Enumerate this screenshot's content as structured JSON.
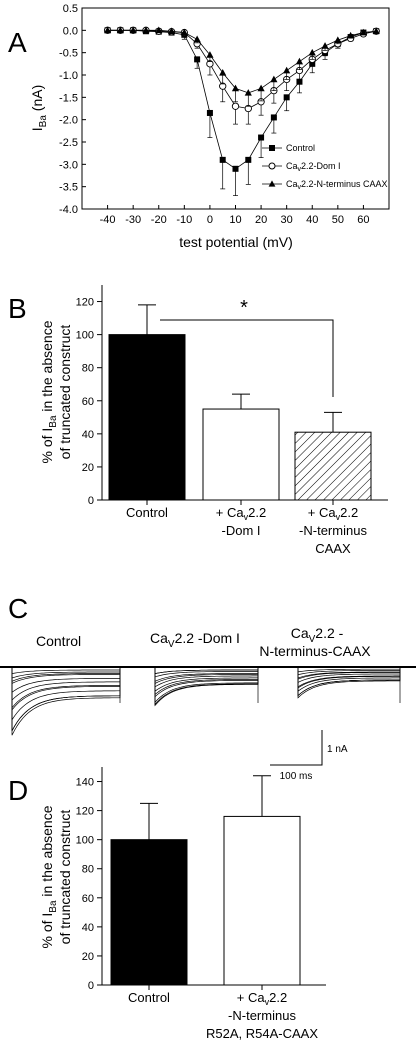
{
  "panels": {
    "A": {
      "letter": "A",
      "ylabel_main": "I",
      "ylabel_sub": "Ba",
      "ylabel_unit": " (nA)",
      "xlabel": "test potential (mV)",
      "legend": [
        {
          "prefix": "",
          "sub": "",
          "suffix": "Control",
          "marker": "square"
        },
        {
          "prefix": "Ca",
          "sub": "v",
          "suffix": "2.2-Dom I",
          "marker": "circle"
        },
        {
          "prefix": "Ca",
          "sub": "v",
          "suffix": "2.2-N-terminus CAAX",
          "marker": "triangle"
        }
      ]
    },
    "B": {
      "letter": "B",
      "ylabel_line1": "% of I",
      "ylabel_sub": "Ba",
      "ylabel_line1_end": " in the absence",
      "ylabel_line2": "of truncated construct",
      "significance": "*",
      "categories": [
        {
          "lines": [
            "Control"
          ]
        },
        {
          "lines": [
            "+ Ca",
            "-Dom I"
          ],
          "sub": "v",
          "after": "2.2"
        },
        {
          "lines": [
            "+ Ca",
            "-N-terminus",
            "CAAX"
          ],
          "sub": "v",
          "after": "2.2"
        }
      ]
    },
    "C": {
      "letter": "C",
      "labels": [
        {
          "main": "Control"
        },
        {
          "main": "Ca",
          "sub": "V",
          "after": "2.2 -Dom I"
        },
        {
          "main": "Ca",
          "sub": "V",
          "after": "2.2 -",
          "line2": "N-terminus-CAAX"
        }
      ],
      "scale_current": "1 nA",
      "scale_time": "100 ms"
    },
    "D": {
      "letter": "D",
      "ylabel_line1": "% of I",
      "ylabel_sub": "Ba",
      "ylabel_line1_end": " in the absence",
      "ylabel_line2": "of truncated construct",
      "categories": [
        {
          "lines": [
            "Control"
          ]
        },
        {
          "lines": [
            "+ Ca",
            "-N-terminus",
            "R52A, R54A-CAAX"
          ],
          "sub": "v",
          "after": "2.2"
        }
      ]
    }
  },
  "chart_data": [
    {
      "type": "line",
      "panel": "A",
      "xlabel": "test potential (mV)",
      "ylabel": "IBa (nA)",
      "xlim": [
        -50,
        70
      ],
      "ylim": [
        -4.0,
        0.5
      ],
      "xticks": [
        -40,
        -30,
        -20,
        -10,
        0,
        10,
        20,
        30,
        40,
        50,
        60,
        70
      ],
      "yticks": [
        0.5,
        0.0,
        -0.5,
        -1.0,
        -1.5,
        -2.0,
        -2.5,
        -3.0,
        -3.5,
        -4.0
      ],
      "x": [
        -40,
        -35,
        -30,
        -25,
        -20,
        -15,
        -10,
        -5,
        0,
        5,
        10,
        15,
        20,
        25,
        30,
        35,
        40,
        45,
        50,
        55,
        60,
        65
      ],
      "series": [
        {
          "name": "Control",
          "marker": "square",
          "values": [
            0.0,
            0.0,
            0.0,
            -0.02,
            -0.03,
            -0.05,
            -0.1,
            -0.65,
            -1.85,
            -2.9,
            -3.1,
            -2.9,
            -2.4,
            -1.95,
            -1.5,
            -1.15,
            -0.75,
            -0.5,
            -0.3,
            -0.15,
            -0.05,
            -0.02
          ],
          "errors": [
            0.0,
            0.0,
            0.0,
            0.02,
            0.03,
            0.05,
            0.1,
            0.2,
            0.55,
            0.65,
            0.6,
            0.55,
            0.45,
            0.35,
            0.3,
            0.25,
            0.2,
            0.15,
            0.1,
            0.08,
            0.05,
            0.02
          ]
        },
        {
          "name": "Cav2.2-Dom I",
          "marker": "circle",
          "values": [
            0.0,
            0.0,
            0.0,
            0.0,
            -0.02,
            -0.03,
            -0.05,
            -0.3,
            -0.75,
            -1.25,
            -1.7,
            -1.75,
            -1.6,
            -1.35,
            -1.1,
            -0.9,
            -0.65,
            -0.45,
            -0.3,
            -0.18,
            -0.08,
            -0.02
          ],
          "errors": [
            0.0,
            0.0,
            0.0,
            0.0,
            0.02,
            0.03,
            0.05,
            0.1,
            0.25,
            0.35,
            0.4,
            0.35,
            0.3,
            0.28,
            0.25,
            0.2,
            0.15,
            0.12,
            0.1,
            0.06,
            0.04,
            0.02
          ]
        },
        {
          "name": "Cav2.2-N-terminus CAAX",
          "marker": "triangle",
          "values": [
            0.0,
            0.0,
            0.0,
            0.0,
            0.0,
            -0.02,
            -0.05,
            -0.2,
            -0.55,
            -0.95,
            -1.3,
            -1.4,
            -1.3,
            -1.1,
            -0.9,
            -0.7,
            -0.5,
            -0.35,
            -0.22,
            -0.12,
            -0.05,
            -0.02
          ],
          "errors": [
            0.0,
            0.0,
            0.0,
            0.0,
            0.0,
            0.02,
            0.05,
            0.08,
            0.15,
            0.25,
            0.3,
            0.3,
            0.28,
            0.25,
            0.2,
            0.18,
            0.15,
            0.1,
            0.08,
            0.05,
            0.03,
            0.02
          ]
        }
      ]
    },
    {
      "type": "bar",
      "panel": "B",
      "categories": [
        "Control",
        "+ Cav2.2 -Dom I",
        "+ Cav2.2 -N-terminus CAAX"
      ],
      "values": [
        100,
        55,
        41
      ],
      "errors": [
        18,
        9,
        12
      ],
      "fills": [
        "#000000",
        "#ffffff",
        "hatch"
      ],
      "ylim": [
        0,
        130
      ],
      "yticks": [
        0,
        20,
        40,
        60,
        80,
        100,
        120
      ],
      "ylabel": "% of IBa in the absence of truncated construct"
    },
    {
      "type": "bar",
      "panel": "D",
      "categories": [
        "Control",
        "+ Cav2.2 -N-terminus R52A, R54A-CAAX"
      ],
      "values": [
        100,
        116
      ],
      "errors": [
        25,
        28
      ],
      "fills": [
        "#000000",
        "#ffffff"
      ],
      "ylim": [
        0,
        150
      ],
      "yticks": [
        0,
        20,
        40,
        60,
        80,
        100,
        120,
        140
      ],
      "ylabel": "% of IBa in the absence of truncated construct"
    }
  ]
}
